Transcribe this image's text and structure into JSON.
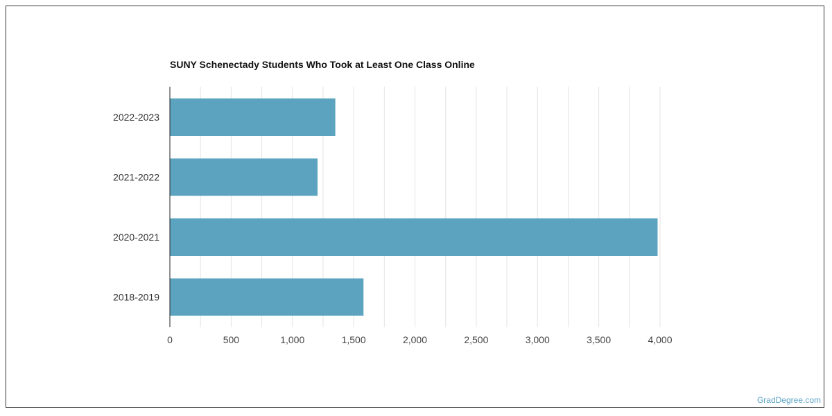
{
  "chart_data": {
    "type": "bar",
    "orientation": "horizontal",
    "title": "SUNY Schenectady Students Who Took at Least One Class Online",
    "categories": [
      "2022-2023",
      "2021-2022",
      "2020-2021",
      "2018-2019"
    ],
    "values": [
      1350,
      1205,
      3980,
      1580
    ],
    "xlim": [
      0,
      4000
    ],
    "xticks": [
      0,
      500,
      1000,
      1500,
      2000,
      2500,
      3000,
      3500,
      4000
    ],
    "xtick_labels": [
      "0",
      "500",
      "1,000",
      "1,500",
      "2,000",
      "2,500",
      "3,000",
      "3,500",
      "4,000"
    ],
    "grid": true,
    "bar_color": "#5ba3bf",
    "xlabel": "",
    "ylabel": ""
  },
  "watermark": "GradDegree.com"
}
